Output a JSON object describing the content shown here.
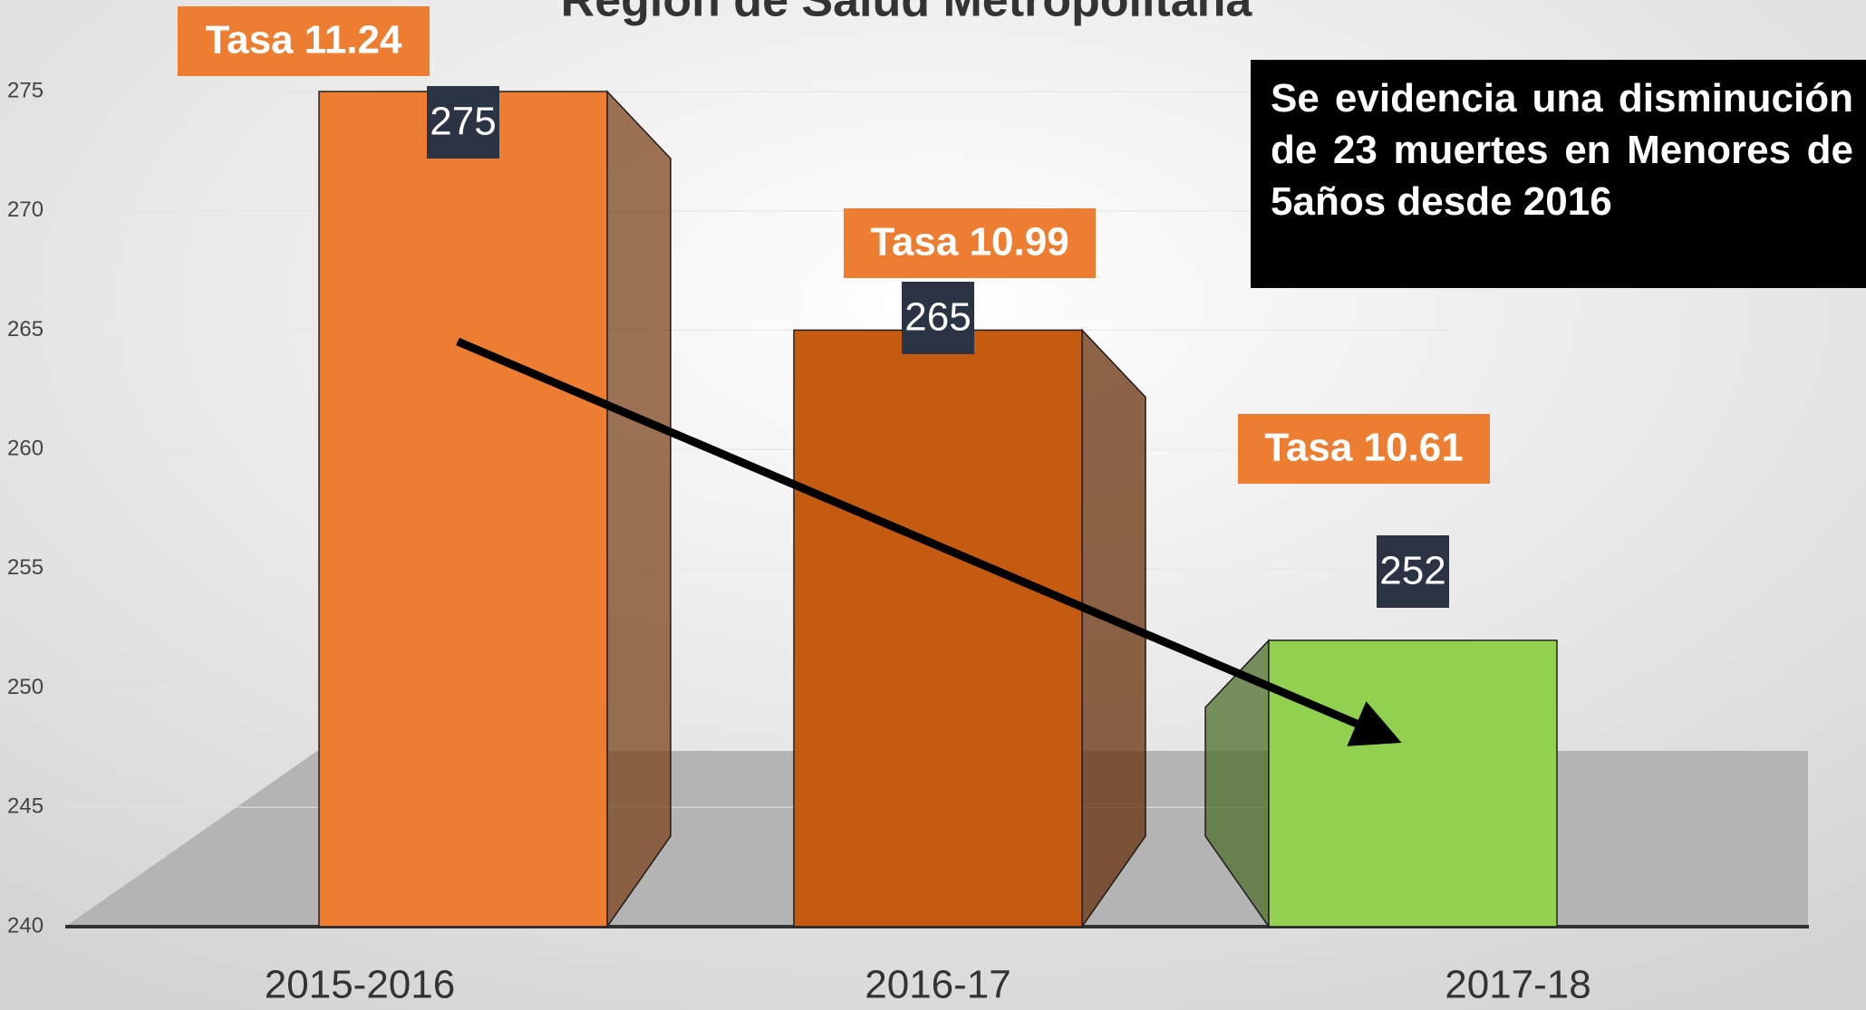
{
  "chart_data": {
    "type": "bar3d",
    "title": "Región de Salud Metropolitana",
    "categories": [
      "2015-2016",
      "2016-17",
      "2017-18"
    ],
    "series": [
      {
        "values": [
          275,
          265,
          252
        ],
        "value_labels": [
          "275",
          "265",
          "252"
        ],
        "colors": [
          "#ed7d31",
          "#c55a11",
          "#92d050"
        ]
      }
    ],
    "ylim": [
      240,
      275
    ],
    "yticks": [
      240,
      245,
      250,
      255,
      260,
      265,
      270,
      275
    ],
    "annotations": [
      "Tasa 11.24",
      "Tasa 10.99",
      "Tasa 10.61"
    ],
    "note": "Se evidencia una disminución de 23 muertes en Menores de 5años desde 2016"
  }
}
